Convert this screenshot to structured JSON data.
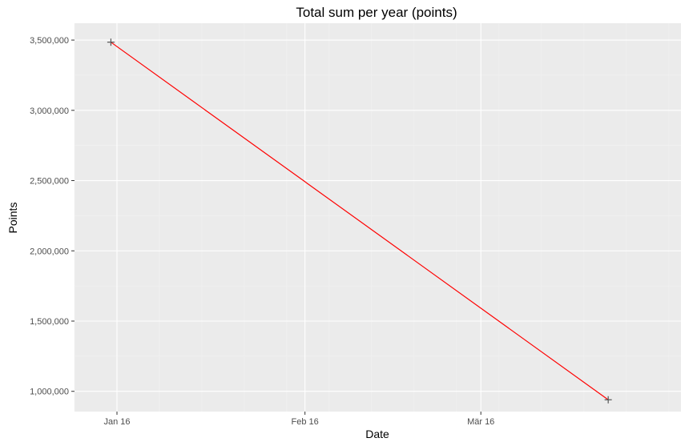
{
  "chart_data": {
    "type": "line",
    "title": "Total sum per year (points)",
    "xlabel": "Date",
    "ylabel": "Points",
    "x_axis_type": "date",
    "x_ticks": [
      {
        "date": "2016-01-01",
        "label": "Jan 16"
      },
      {
        "date": "2016-02-01",
        "label": "Feb 16"
      },
      {
        "date": "2016-03-01",
        "label": "Mär 16"
      }
    ],
    "y_ticks": [
      {
        "value": 1000000,
        "label": "1,000,000"
      },
      {
        "value": 1500000,
        "label": "1,500,000"
      },
      {
        "value": 2000000,
        "label": "2,000,000"
      },
      {
        "value": 2500000,
        "label": "2,500,000"
      },
      {
        "value": 3000000,
        "label": "3,000,000"
      },
      {
        "value": 3500000,
        "label": "3,500,000"
      }
    ],
    "xlim": [
      "2015-12-25",
      "2016-04-03"
    ],
    "ylim": [
      856000,
      3620000
    ],
    "grid": true,
    "series": [
      {
        "points": [
          {
            "x": "2015-12-31",
            "y": 3485000
          },
          {
            "x": "2016-03-22",
            "y": 940000
          }
        ],
        "line_color": "#ff0000",
        "marker_color": "#555555",
        "marker": "plus"
      }
    ],
    "panel_background": "#ebebeb"
  }
}
